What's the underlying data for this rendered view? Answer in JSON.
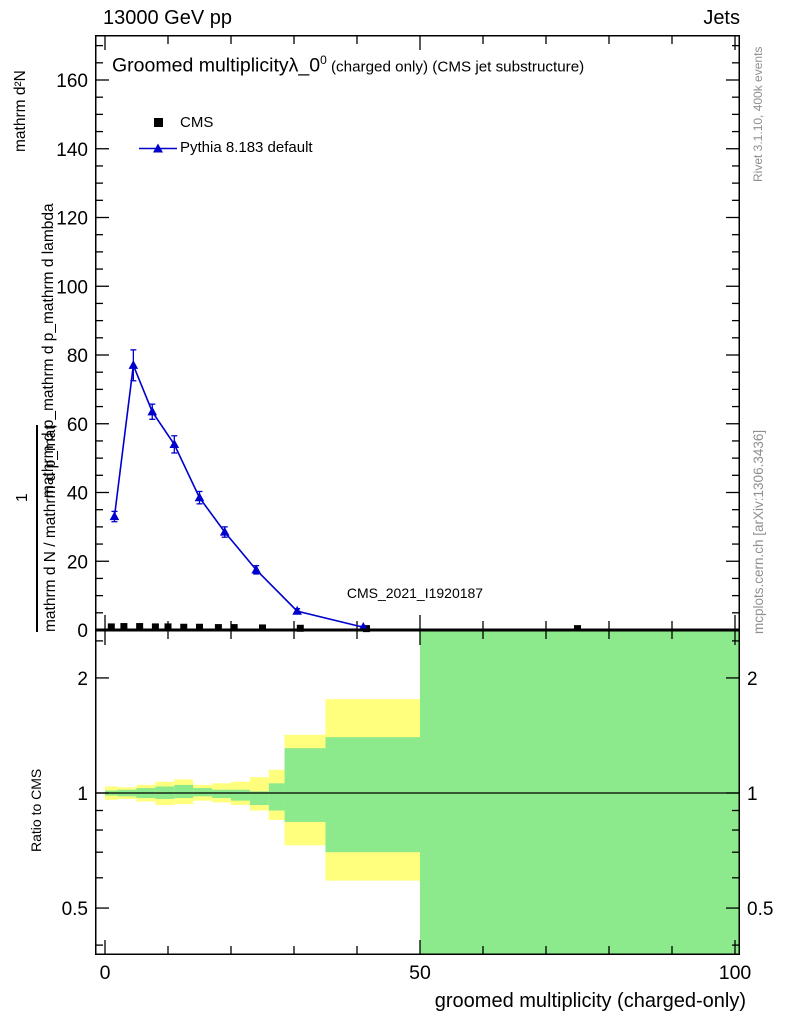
{
  "header": {
    "beam_energy": "13000 GeV pp",
    "category": "Jets"
  },
  "title": {
    "main": "Groomed multiplicity",
    "lambda": "λ_0",
    "superscript": "0",
    "suffix": " (charged only) (CMS jet substructure)"
  },
  "legend": {
    "cms": "CMS",
    "pythia": "Pythia 8.183 default"
  },
  "axis_labels": {
    "y_numerator": "mathrm d²N",
    "y_denominator": "mathrm d p_mathrm d p_mathrm d lambda",
    "y_fraction_one": "1",
    "y_fraction_denominator": "mathrm d N / mathrm d p_mathrm d p_mathrm d lambda",
    "ratio_y": "Ratio to CMS",
    "x": "groomed multiplicity (charged-only)"
  },
  "side_notes": {
    "rivet": "Rivet 3.1.10,  400k events",
    "mcplots": "mcplots.cern.ch [arXiv:1306.3436]"
  },
  "chart_data": [
    {
      "type": "line",
      "title": "Groomed multiplicity λ_0^0 (charged only) (CMS jet substructure)",
      "xlabel": "groomed multiplicity (charged-only)",
      "watermark": "CMS_2021_I1920187",
      "xlim": [
        0,
        100.8
      ],
      "ylim": [
        0,
        173
      ],
      "xticks": [
        0,
        50,
        100
      ],
      "xminor_step": 10,
      "yticks": [
        0,
        20,
        40,
        60,
        80,
        100,
        120,
        140,
        160
      ],
      "yminor_step": 5,
      "series": [
        {
          "name": "CMS",
          "type": "scatter",
          "marker": "square",
          "color": "#000000",
          "x": [
            1,
            3,
            5.5,
            8,
            10,
            12.5,
            15,
            18,
            20.5,
            25,
            31,
            41.5,
            75
          ],
          "y": [
            0.9,
            1.0,
            1.0,
            0.9,
            0.9,
            0.8,
            0.8,
            0.7,
            0.7,
            0.6,
            0.5,
            0.4,
            0.4
          ]
        },
        {
          "name": "Pythia 8.183 default",
          "type": "line",
          "marker": "triangle",
          "color": "#0000cc",
          "x": [
            1.5,
            4.5,
            7.5,
            11,
            15,
            19,
            24,
            30.5,
            41
          ],
          "y": [
            33,
            77,
            63.5,
            54,
            38.5,
            28.5,
            17.5,
            5.5,
            0.8
          ],
          "yerr": [
            1.5,
            4.5,
            2.2,
            2.5,
            1.8,
            1.5,
            1.2,
            0.7,
            0.3
          ]
        }
      ]
    },
    {
      "type": "ratio",
      "ylabel": "Ratio to CMS",
      "yscale": "log",
      "ylim": [
        0.377,
        2.67
      ],
      "yticks": [
        0.5,
        1,
        2
      ],
      "yminors": [
        0.4,
        0.6,
        0.7,
        0.8,
        0.9,
        2.5
      ],
      "reference_y": 1,
      "bands": {
        "yellow": {
          "color": "#ffff7d",
          "steps": [
            [
              0,
              2,
              0.96,
              1.04
            ],
            [
              2,
              5,
              0.965,
              1.035
            ],
            [
              5,
              8,
              0.95,
              1.05
            ],
            [
              8,
              11,
              0.93,
              1.07
            ],
            [
              11,
              14,
              0.935,
              1.085
            ],
            [
              14,
              17,
              0.955,
              1.05
            ],
            [
              17,
              20,
              0.945,
              1.06
            ],
            [
              20,
              23,
              0.93,
              1.07
            ],
            [
              23,
              26,
              0.9,
              1.1
            ],
            [
              26,
              28.5,
              0.85,
              1.15
            ],
            [
              28.5,
              35,
              0.73,
              1.42
            ],
            [
              35,
              50,
              0.59,
              1.76
            ],
            [
              50,
              100.8,
              0.377,
              2.67
            ]
          ]
        },
        "green": {
          "color": "#8ce98c",
          "steps": [
            [
              0,
              2,
              0.985,
              1.015
            ],
            [
              2,
              5,
              0.98,
              1.02
            ],
            [
              5,
              8,
              0.97,
              1.03
            ],
            [
              8,
              11,
              0.965,
              1.04
            ],
            [
              11,
              14,
              0.97,
              1.05
            ],
            [
              14,
              17,
              0.98,
              1.03
            ],
            [
              17,
              20,
              0.97,
              1.02
            ],
            [
              20,
              23,
              0.955,
              1.02
            ],
            [
              23,
              26,
              0.93,
              1.01
            ],
            [
              26,
              28.5,
              0.9,
              1.06
            ],
            [
              28.5,
              35,
              0.84,
              1.31
            ],
            [
              35,
              50,
              0.7,
              1.4
            ],
            [
              50,
              100.8,
              0.377,
              2.67
            ]
          ]
        }
      }
    }
  ]
}
